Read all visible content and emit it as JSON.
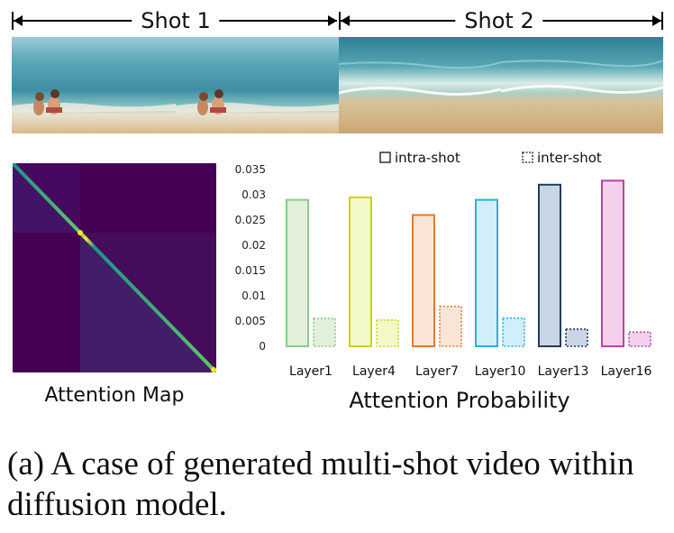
{
  "shots": [
    {
      "label": "Shot 1"
    },
    {
      "label": "Shot 2"
    }
  ],
  "attention_map": {
    "caption": "Attention Map",
    "colormap": [
      "#440154",
      "#3b528b",
      "#21918c",
      "#5ec962",
      "#fde725"
    ]
  },
  "chart_caption": "Attention Probability",
  "figure_caption": "(a) A case of generated multi-shot video within diffusion model.",
  "chart_data": {
    "type": "bar",
    "categories": [
      "Layer1",
      "Layer4",
      "Layer7",
      "Layer10",
      "Layer13",
      "Layer16"
    ],
    "series": [
      {
        "name": "intra-shot",
        "values": [
          0.029,
          0.0295,
          0.026,
          0.029,
          0.032,
          0.0328
        ],
        "stroke": "solid"
      },
      {
        "name": "inter-shot",
        "values": [
          0.0055,
          0.0052,
          0.0079,
          0.0056,
          0.0034,
          0.0028
        ],
        "stroke": "dotted"
      }
    ],
    "category_colors": [
      {
        "fill": "#e2f0d9",
        "stroke": "#8cc98a"
      },
      {
        "fill": "#f3f8c9",
        "stroke": "#c9d41c"
      },
      {
        "fill": "#fbe5d6",
        "stroke": "#e07a36"
      },
      {
        "fill": "#d1eefb",
        "stroke": "#2aaee3"
      },
      {
        "fill": "#c9d6e6",
        "stroke": "#233b5c"
      },
      {
        "fill": "#f5d0ec",
        "stroke": "#b247a5"
      }
    ],
    "ylim": [
      0,
      0.035
    ],
    "yticks": [
      "0",
      "0.005",
      "0.01",
      "0.015",
      "0.02",
      "0.025",
      "0.03",
      "0.035"
    ],
    "ytick_values": [
      0,
      0.005,
      0.01,
      0.015,
      0.02,
      0.025,
      0.03,
      0.035
    ],
    "legend_position": "top-right",
    "grid": false
  }
}
